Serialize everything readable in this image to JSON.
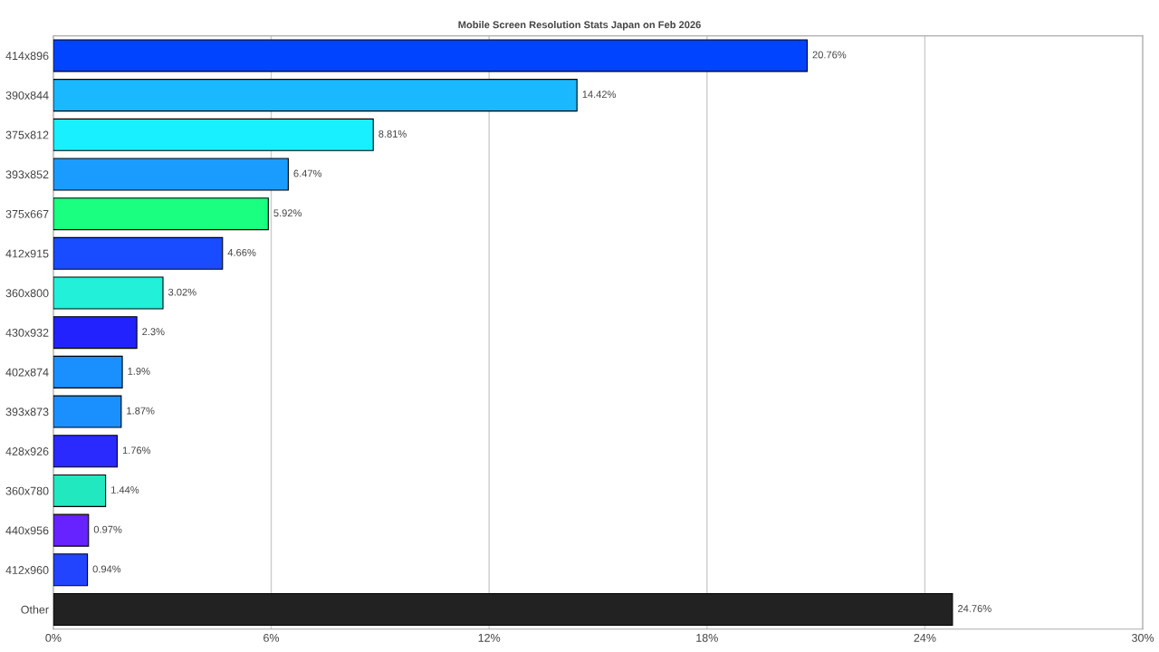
{
  "chart_data": {
    "type": "bar",
    "orientation": "horizontal",
    "subtitle": "Mobile Screen Resolution Stats Japan on Feb 2026",
    "categories": [
      "414x896",
      "390x844",
      "375x812",
      "393x852",
      "375x667",
      "412x915",
      "360x800",
      "430x932",
      "402x874",
      "393x873",
      "428x926",
      "360x780",
      "440x956",
      "412x960",
      "Other"
    ],
    "values": [
      20.76,
      14.42,
      8.81,
      6.47,
      5.92,
      4.66,
      3.02,
      2.3,
      1.9,
      1.87,
      1.76,
      1.44,
      0.97,
      0.94,
      24.76
    ],
    "colors": [
      "#0044ff",
      "#1ab8ff",
      "#18f0ff",
      "#1a9cff",
      "#1aff80",
      "#1a4cff",
      "#22f0d8",
      "#2222ff",
      "#1a90ff",
      "#1a90ff",
      "#2a2aff",
      "#22e8c0",
      "#6622ff",
      "#2244ff",
      "#222222"
    ],
    "value_labels": [
      "20.76%",
      "14.42%",
      "8.81%",
      "6.47%",
      "5.92%",
      "4.66%",
      "3.02%",
      "2.3%",
      "1.9%",
      "1.87%",
      "1.76%",
      "1.44%",
      "0.97%",
      "0.94%",
      "24.76%"
    ],
    "xlim": [
      0,
      30
    ],
    "xticks": [
      {
        "value": 0,
        "label": "0%"
      },
      {
        "value": 6,
        "label": "6%"
      },
      {
        "value": 12,
        "label": "12%"
      },
      {
        "value": 18,
        "label": "18%"
      },
      {
        "value": 24,
        "label": "24%"
      },
      {
        "value": 30,
        "label": "30%"
      }
    ],
    "grid": "x"
  }
}
